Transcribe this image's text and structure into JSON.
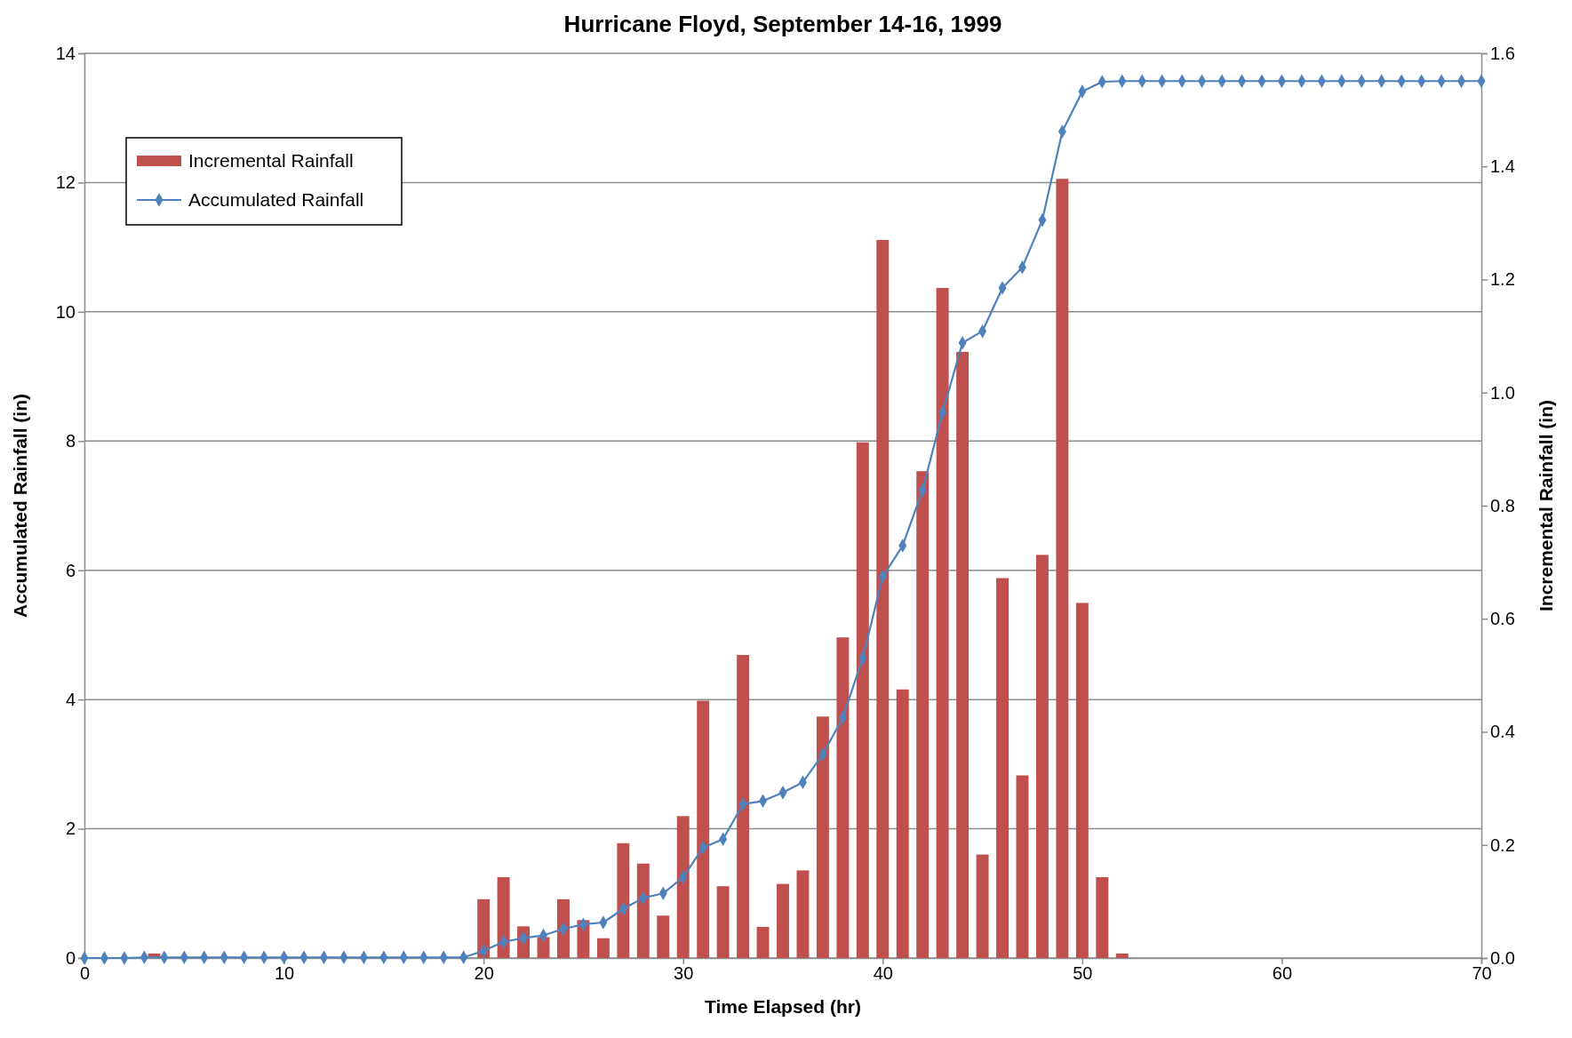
{
  "chart_data": {
    "type": "bar",
    "title": "Hurricane Floyd, September 14-16, 1999",
    "xlabel": "Time Elapsed (hr)",
    "ylabel": "Accumulated Rainfall (in)",
    "y2label": "Incremental Rainfall (in)",
    "xlim": [
      0,
      70
    ],
    "xticks": [
      0,
      10,
      20,
      30,
      40,
      50,
      60,
      70
    ],
    "ylim": [
      0,
      14
    ],
    "yticks": [
      0,
      2,
      4,
      6,
      8,
      10,
      12,
      14
    ],
    "y2lim": [
      0,
      1.6
    ],
    "y2ticks": [
      {
        "value": 0,
        "label": "0.0"
      },
      {
        "value": 0.2,
        "label": "0.2"
      },
      {
        "value": 0.4,
        "label": "0.4"
      },
      {
        "value": 0.6,
        "label": "0.6"
      },
      {
        "value": 0.8,
        "label": "0.8"
      },
      {
        "value": 1,
        "label": "1.0"
      },
      {
        "value": 1.2,
        "label": "1.2"
      },
      {
        "value": 1.4,
        "label": "1.4"
      },
      {
        "value": 1.6,
        "label": "1.6"
      }
    ],
    "grid": "y",
    "legend": "top left",
    "marker": "diamond",
    "series": [
      {
        "name": "Incremental Rainfall",
        "axis": "y2",
        "color": "#c0504d",
        "x": [
          3.5,
          20,
          21,
          22,
          23,
          24,
          25,
          26,
          27,
          28,
          29,
          30,
          31,
          32,
          33,
          34,
          35,
          36,
          37,
          38,
          39,
          40,
          41,
          42,
          43,
          44,
          45,
          46,
          47,
          48,
          49,
          50,
          51,
          52
        ],
        "values": [
          0.008,
          0.104,
          0.143,
          0.056,
          0.037,
          0.104,
          0.067,
          0.035,
          0.203,
          0.167,
          0.075,
          0.251,
          0.455,
          0.127,
          0.536,
          0.055,
          0.131,
          0.155,
          0.427,
          0.567,
          0.912,
          1.27,
          0.475,
          0.861,
          1.185,
          1.072,
          0.183,
          0.672,
          0.323,
          0.713,
          1.378,
          0.628,
          0.143,
          0.008
        ]
      },
      {
        "name": "Accumulated Rainfall",
        "type": "line",
        "color": "#4f81bd",
        "x": [
          0,
          1,
          2,
          3,
          4,
          5,
          6,
          7,
          8,
          9,
          10,
          11,
          12,
          13,
          14,
          15,
          16,
          17,
          18,
          19,
          20,
          21,
          22,
          23,
          24,
          25,
          26,
          27,
          28,
          29,
          30,
          31,
          32,
          33,
          34,
          35,
          36,
          37,
          38,
          39,
          40,
          41,
          42,
          43,
          44,
          45,
          46,
          47,
          48,
          49,
          50,
          51,
          52,
          53,
          54,
          55,
          56,
          57,
          58,
          59,
          60,
          61,
          62,
          63,
          64,
          65,
          66,
          67,
          68,
          69,
          70
        ],
        "values": [
          0,
          0,
          0,
          0.01,
          0.01,
          0.01,
          0.01,
          0.01,
          0.01,
          0.01,
          0.01,
          0.01,
          0.01,
          0.01,
          0.01,
          0.01,
          0.01,
          0.01,
          0.01,
          0.01,
          0.11,
          0.25,
          0.31,
          0.35,
          0.45,
          0.52,
          0.55,
          0.76,
          0.93,
          1.0,
          1.25,
          1.71,
          1.84,
          2.38,
          2.43,
          2.56,
          2.72,
          3.15,
          3.72,
          4.64,
          5.9,
          6.38,
          7.24,
          8.44,
          9.52,
          9.7,
          10.37,
          10.69,
          11.42,
          12.79,
          13.41,
          13.56,
          13.57,
          13.57,
          13.57,
          13.57,
          13.57,
          13.57,
          13.57,
          13.57,
          13.57,
          13.57,
          13.57,
          13.57,
          13.57,
          13.57,
          13.57,
          13.57,
          13.57,
          13.57,
          13.57
        ]
      }
    ]
  }
}
